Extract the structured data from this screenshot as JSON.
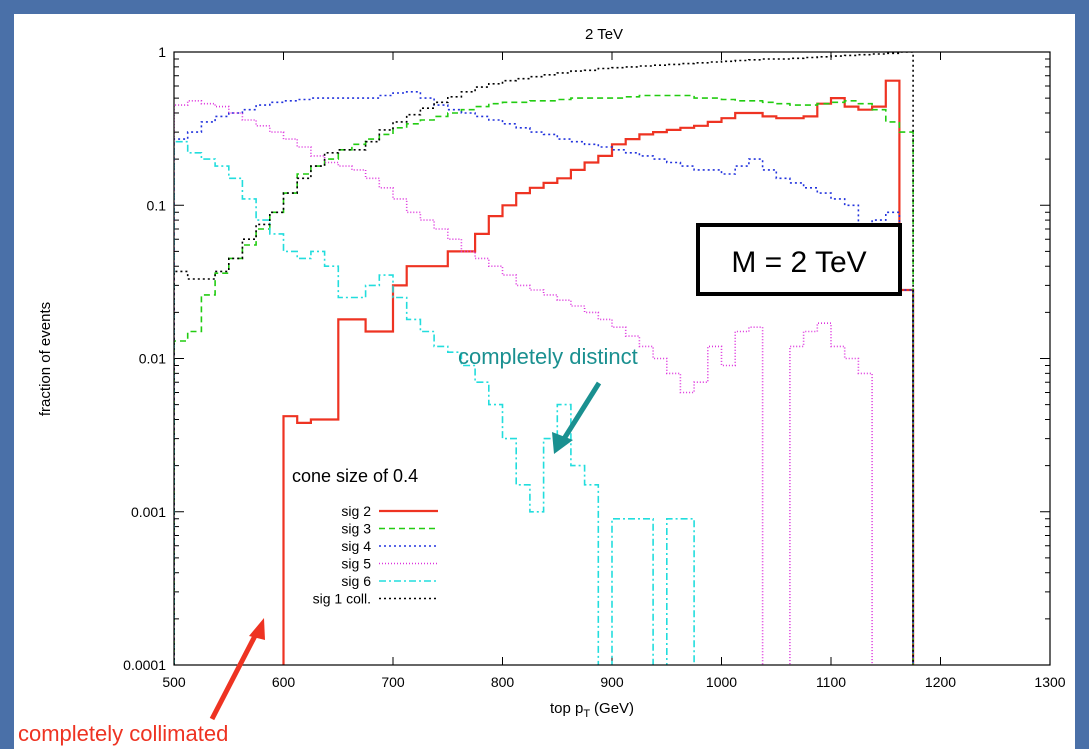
{
  "chart_data": {
    "type": "line",
    "title": "2 TeV",
    "xlabel": "top p",
    "xlabel_sub": "T",
    "xlabel_unit": "(GeV)",
    "ylabel": "fraction of events",
    "xlim": [
      500,
      1300
    ],
    "ylim": [
      0.0001,
      1
    ],
    "y_scale": "log",
    "x_ticks": [
      500,
      600,
      700,
      800,
      900,
      1000,
      1100,
      1200,
      1300
    ],
    "y_ticks": [
      {
        "value": 0.0001,
        "label": "0.0001"
      },
      {
        "value": 0.001,
        "label": "0.001"
      },
      {
        "value": 0.01,
        "label": "0.01"
      },
      {
        "value": 0.1,
        "label": "0.1"
      },
      {
        "value": 1,
        "label": "1"
      }
    ],
    "legend_title": "cone size of 0.4",
    "legend_position": "bottom-left",
    "series": [
      {
        "name": "sig 2",
        "color": "#ee3322",
        "dash": "",
        "width": 2.2,
        "edges_start": 500,
        "bin_width": 12.5,
        "values": [
          0,
          0,
          0,
          0,
          0,
          0,
          0,
          0,
          0.0042,
          0.0038,
          0.004,
          0.004,
          0.018,
          0.018,
          0.015,
          0.015,
          0.03,
          0.04,
          0.04,
          0.04,
          0.05,
          0.05,
          0.065,
          0.085,
          0.1,
          0.12,
          0.13,
          0.14,
          0.15,
          0.17,
          0.19,
          0.21,
          0.25,
          0.27,
          0.29,
          0.3,
          0.31,
          0.32,
          0.33,
          0.35,
          0.37,
          0.4,
          0.4,
          0.38,
          0.37,
          0.37,
          0.38,
          0.46,
          0.5,
          0.44,
          0.42,
          0.44,
          0.65,
          0.028
        ]
      },
      {
        "name": "sig 3",
        "color": "#22cc11",
        "dash": "6,4",
        "width": 1.6,
        "edges_start": 500,
        "bin_width": 12.5,
        "values": [
          0.013,
          0.015,
          0.026,
          0.036,
          0.045,
          0.055,
          0.07,
          0.09,
          0.12,
          0.16,
          0.18,
          0.2,
          0.23,
          0.25,
          0.27,
          0.29,
          0.32,
          0.34,
          0.36,
          0.38,
          0.4,
          0.42,
          0.44,
          0.46,
          0.47,
          0.47,
          0.48,
          0.48,
          0.49,
          0.5,
          0.5,
          0.5,
          0.5,
          0.51,
          0.52,
          0.52,
          0.52,
          0.52,
          0.5,
          0.5,
          0.49,
          0.48,
          0.48,
          0.47,
          0.46,
          0.45,
          0.45,
          0.46,
          0.47,
          0.48,
          0.46,
          0.42,
          0.35,
          0.3
        ]
      },
      {
        "name": "sig 4",
        "color": "#2233dd",
        "dash": "2,3",
        "width": 1.6,
        "edges_start": 500,
        "bin_width": 12.5,
        "values": [
          0.27,
          0.3,
          0.35,
          0.38,
          0.4,
          0.42,
          0.45,
          0.47,
          0.48,
          0.49,
          0.5,
          0.5,
          0.5,
          0.5,
          0.5,
          0.52,
          0.54,
          0.55,
          0.5,
          0.45,
          0.42,
          0.4,
          0.38,
          0.36,
          0.34,
          0.32,
          0.3,
          0.29,
          0.27,
          0.26,
          0.25,
          0.24,
          0.23,
          0.22,
          0.21,
          0.2,
          0.19,
          0.18,
          0.17,
          0.17,
          0.16,
          0.18,
          0.2,
          0.17,
          0.15,
          0.14,
          0.13,
          0.12,
          0.11,
          0.1,
          0.07,
          0.08,
          0.09,
          0.028
        ]
      },
      {
        "name": "sig 5",
        "color": "#dd33dd",
        "dash": "1,2",
        "width": 1.6,
        "edges_start": 500,
        "bin_width": 12.5,
        "values": [
          0.45,
          0.48,
          0.46,
          0.44,
          0.4,
          0.36,
          0.33,
          0.3,
          0.27,
          0.24,
          0.21,
          0.19,
          0.18,
          0.17,
          0.15,
          0.13,
          0.11,
          0.09,
          0.08,
          0.07,
          0.06,
          0.05,
          0.045,
          0.04,
          0.035,
          0.03,
          0.028,
          0.026,
          0.024,
          0.022,
          0.02,
          0.018,
          0.016,
          0.014,
          0.012,
          0.01,
          0.008,
          0.006,
          0.007,
          0.012,
          0.009,
          0.015,
          0.016,
          0.0001,
          0.0001,
          0.012,
          0.015,
          0.017,
          0.012,
          0.01,
          0.008,
          0.0001,
          0.0001,
          0.0001
        ]
      },
      {
        "name": "sig 6",
        "color": "#22dddd",
        "dash": "7,3,2,3",
        "width": 1.6,
        "edges_start": 500,
        "bin_width": 12.5,
        "values": [
          0.26,
          0.22,
          0.2,
          0.18,
          0.15,
          0.11,
          0.08,
          0.065,
          0.05,
          0.045,
          0.05,
          0.04,
          0.025,
          0.025,
          0.03,
          0.035,
          0.025,
          0.018,
          0.015,
          0.012,
          0.011,
          0.009,
          0.007,
          0.005,
          0.003,
          0.0015,
          0.001,
          0.003,
          0.005,
          0.002,
          0.0015,
          0.0001,
          0.0009,
          0.0009,
          0.0009,
          0.0001,
          0.0009,
          0.0009,
          0.0001,
          0.0001,
          0.0001,
          0.0001,
          0.0001,
          0.0001,
          0.0001,
          0.0001,
          0.0001,
          0.0001,
          0.0001,
          0.0001,
          0.0001,
          0.0001,
          0.0001,
          0.0001
        ]
      },
      {
        "name": "sig 1 coll.",
        "color": "#000000",
        "dash": "2,3",
        "width": 1.6,
        "edges_start": 500,
        "bin_width": 12.5,
        "values": [
          0.037,
          0.033,
          0.033,
          0.037,
          0.045,
          0.06,
          0.075,
          0.09,
          0.12,
          0.15,
          0.18,
          0.22,
          0.23,
          0.23,
          0.26,
          0.31,
          0.35,
          0.39,
          0.43,
          0.47,
          0.51,
          0.55,
          0.59,
          0.62,
          0.65,
          0.67,
          0.69,
          0.71,
          0.73,
          0.75,
          0.76,
          0.78,
          0.79,
          0.8,
          0.81,
          0.82,
          0.83,
          0.84,
          0.85,
          0.86,
          0.87,
          0.88,
          0.89,
          0.9,
          0.9,
          0.91,
          0.92,
          0.93,
          0.94,
          0.95,
          0.96,
          0.97,
          0.98,
          1.0
        ]
      }
    ]
  },
  "annotations": {
    "mass_box": "M = 2 TeV",
    "distinct_text": "completely distinct",
    "distinct_color": "#1a9090",
    "collimated_text": "completely collimated",
    "collimated_color": "#ee3322"
  }
}
